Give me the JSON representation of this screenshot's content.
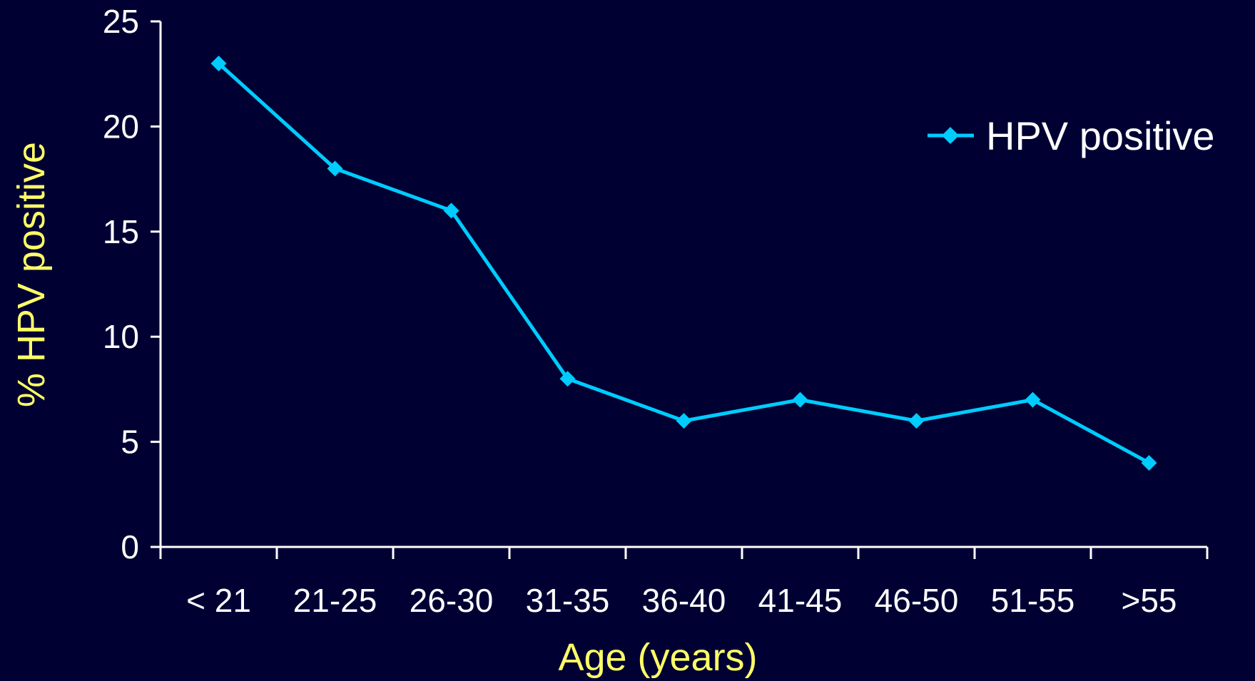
{
  "chart_data": {
    "type": "line",
    "categories": [
      "< 21",
      "21-25",
      "26-30",
      "31-35",
      "36-40",
      "41-45",
      "46-50",
      "51-55",
      ">55"
    ],
    "series": [
      {
        "name": "HPV positive",
        "values": [
          23,
          18,
          16,
          8,
          6,
          7,
          6,
          7,
          4
        ],
        "color": "#00ccff"
      }
    ],
    "xlabel": "Age (years)",
    "ylabel": "% HPV positive",
    "ylim": [
      0,
      25
    ],
    "yticks": [
      0,
      5,
      10,
      15,
      20,
      25
    ],
    "grid": false,
    "legend_position": "top-right",
    "colors": {
      "background": "#000033",
      "axis": "#ffffff",
      "tick_label": "#ffffff",
      "axis_title": "#ffff66",
      "series": "#00ccff"
    }
  }
}
